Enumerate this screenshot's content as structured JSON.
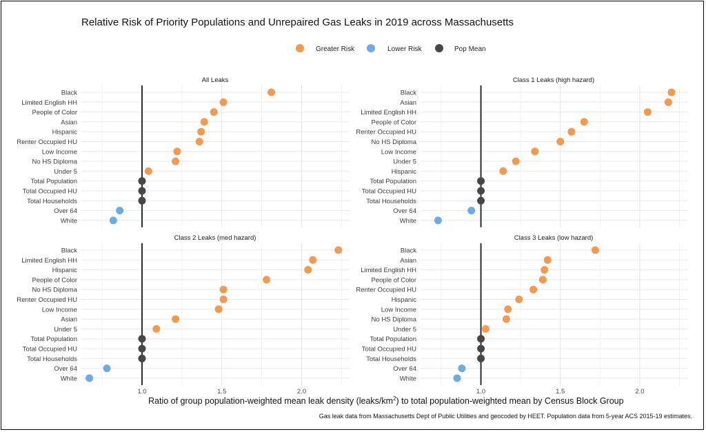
{
  "chart_data": {
    "type": "scatter",
    "title": "Relative Risk of Priority Populations and Unrepaired Gas Leaks in 2019 across Massachusetts",
    "xlabel_main": "Ratio of group population-weighted mean leak density (leaks/km",
    "xlabel_sup": "2",
    "xlabel_tail": ") to total population-weighted mean by Census Block Group",
    "caption": "Gas leak data from Massachusetts Dept of Public Utilities and geocoded by HEET. Population data from 5-year ACS 2015-19 estimates.",
    "reference_line": 1.0,
    "xlim": [
      0.62,
      2.3
    ],
    "x_ticks": [
      1.0,
      1.5,
      2.0
    ],
    "x_tick_labels": [
      "1.0",
      "1.5",
      "2.0"
    ],
    "legend": [
      {
        "label": "Greater Risk",
        "color": "#F39A4F"
      },
      {
        "label": "Lower Risk",
        "color": "#6CACE4"
      },
      {
        "label": "Pop Mean",
        "color": "#474747"
      }
    ],
    "panels": [
      {
        "title": "All Leaks",
        "categories": [
          "Black",
          "Limited English HH",
          "People of Color",
          "Asian",
          "Hispanic",
          "Renter Occupied HU",
          "Low Income",
          "No HS Diploma",
          "Under 5",
          "Total Population",
          "Total Occupied HU",
          "Total Households",
          "Over 64",
          "White"
        ],
        "values": [
          1.81,
          1.51,
          1.45,
          1.39,
          1.37,
          1.36,
          1.22,
          1.21,
          1.04,
          1.0,
          1.0,
          1.0,
          0.86,
          0.82
        ],
        "groups": [
          "Greater Risk",
          "Greater Risk",
          "Greater Risk",
          "Greater Risk",
          "Greater Risk",
          "Greater Risk",
          "Greater Risk",
          "Greater Risk",
          "Greater Risk",
          "Pop Mean",
          "Pop Mean",
          "Pop Mean",
          "Lower Risk",
          "Lower Risk"
        ]
      },
      {
        "title": "Class 1 Leaks (high hazard)",
        "categories": [
          "Black",
          "Asian",
          "Limited English HH",
          "People of Color",
          "Renter Occupied HU",
          "No HS Diploma",
          "Low Income",
          "Under 5",
          "Hispanic",
          "Total Population",
          "Total Occupied HU",
          "Total Households",
          "Over 64",
          "White"
        ],
        "values": [
          2.2,
          2.18,
          2.05,
          1.65,
          1.57,
          1.5,
          1.34,
          1.22,
          1.14,
          1.0,
          1.0,
          1.0,
          0.94,
          0.73
        ],
        "groups": [
          "Greater Risk",
          "Greater Risk",
          "Greater Risk",
          "Greater Risk",
          "Greater Risk",
          "Greater Risk",
          "Greater Risk",
          "Greater Risk",
          "Greater Risk",
          "Pop Mean",
          "Pop Mean",
          "Pop Mean",
          "Lower Risk",
          "Lower Risk"
        ]
      },
      {
        "title": "Class 2 Leaks (med hazard)",
        "categories": [
          "Black",
          "Limited English HH",
          "Hispanic",
          "People of Color",
          "No HS Diploma",
          "Renter Occupied HU",
          "Low Income",
          "Asian",
          "Under 5",
          "Total Population",
          "Total Occupied HU",
          "Total Households",
          "Over 64",
          "White"
        ],
        "values": [
          2.23,
          2.07,
          2.04,
          1.78,
          1.51,
          1.51,
          1.48,
          1.21,
          1.09,
          1.0,
          1.0,
          1.0,
          0.78,
          0.67
        ],
        "groups": [
          "Greater Risk",
          "Greater Risk",
          "Greater Risk",
          "Greater Risk",
          "Greater Risk",
          "Greater Risk",
          "Greater Risk",
          "Greater Risk",
          "Greater Risk",
          "Pop Mean",
          "Pop Mean",
          "Pop Mean",
          "Lower Risk",
          "Lower Risk"
        ]
      },
      {
        "title": "Class 3 Leaks (low hazard)",
        "categories": [
          "Black",
          "Asian",
          "Limited English HH",
          "People of Color",
          "Renter Occupied HU",
          "Hispanic",
          "Low Income",
          "No HS Diploma",
          "Under 5",
          "Total Population",
          "Total Occupied HU",
          "Total Households",
          "Over 64",
          "White"
        ],
        "values": [
          1.72,
          1.42,
          1.4,
          1.39,
          1.33,
          1.24,
          1.17,
          1.16,
          1.03,
          1.0,
          1.0,
          1.0,
          0.88,
          0.85
        ],
        "groups": [
          "Greater Risk",
          "Greater Risk",
          "Greater Risk",
          "Greater Risk",
          "Greater Risk",
          "Greater Risk",
          "Greater Risk",
          "Greater Risk",
          "Greater Risk",
          "Pop Mean",
          "Pop Mean",
          "Pop Mean",
          "Lower Risk",
          "Lower Risk"
        ]
      }
    ]
  }
}
